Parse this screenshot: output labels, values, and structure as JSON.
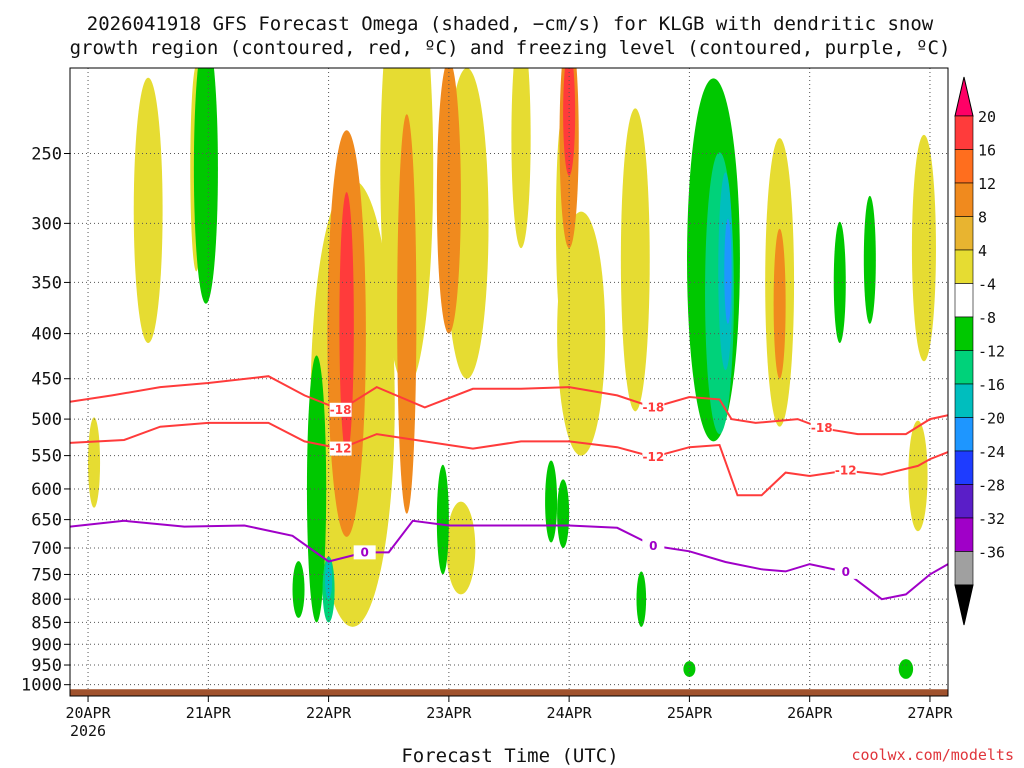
{
  "title": {
    "line1": "2026041918 GFS Forecast Omega (shaded, −cm/s) for KLGB with dendritic snow",
    "line2": "growth region (contoured, red, ºC) and freezing level (contoured, purple, ºC)"
  },
  "credit": "coolwx.com/modelts",
  "chart_data": {
    "type": "heatmap",
    "title": "2026041918 GFS Forecast Omega (shaded, −cm/s) for KLGB with dendritic snow growth region (contoured, red, ºC) and freezing level (contoured, purple, ºC)",
    "xlabel": "Forecast Time (UTC)",
    "ylabel": "",
    "x_range_days_from_20APR": [
      -0.15,
      7.15
    ],
    "y_range_hPa": [
      200,
      1030
    ],
    "x_ticks": [
      {
        "d": 0,
        "label": "20APR",
        "sub": "2026"
      },
      {
        "d": 1,
        "label": "21APR",
        "sub": ""
      },
      {
        "d": 2,
        "label": "22APR",
        "sub": ""
      },
      {
        "d": 3,
        "label": "23APR",
        "sub": ""
      },
      {
        "d": 4,
        "label": "24APR",
        "sub": ""
      },
      {
        "d": 5,
        "label": "25APR",
        "sub": ""
      },
      {
        "d": 6,
        "label": "26APR",
        "sub": ""
      },
      {
        "d": 7,
        "label": "27APR",
        "sub": ""
      }
    ],
    "y_ticks": [
      250,
      300,
      350,
      400,
      450,
      500,
      550,
      600,
      650,
      700,
      750,
      800,
      850,
      900,
      950,
      1000
    ],
    "colorbar": {
      "labels": [
        "20",
        "16",
        "12",
        "8",
        "4",
        "-4",
        "-8",
        "-12",
        "-16",
        "-20",
        "-24",
        "-28",
        "-32",
        "-36"
      ],
      "colors": [
        "#ff0066",
        "#ff3b3b",
        "#ff6e1e",
        "#f08a1e",
        "#e8b430",
        "#e6dc32",
        "#ffffff",
        "#00c800",
        "#00d27a",
        "#00bebe",
        "#1e96ff",
        "#1e3cff",
        "#5a1ec8",
        "#a000c8",
        "#a0a0a0",
        "#000000"
      ]
    },
    "omega_fields": [
      {
        "color": "#e6dc32",
        "cells": [
          [
            0.5,
            290,
            0.12,
            120
          ],
          [
            0.05,
            560,
            0.05,
            70
          ],
          [
            0.9,
            260,
            0.05,
            80
          ],
          [
            2.2,
            480,
            0.35,
            380
          ],
          [
            2.65,
            260,
            0.22,
            200
          ],
          [
            3.15,
            300,
            0.18,
            150
          ],
          [
            3.1,
            700,
            0.12,
            90
          ],
          [
            3.6,
            240,
            0.08,
            80
          ],
          [
            4.1,
            400,
            0.2,
            150
          ],
          [
            4.55,
            330,
            0.12,
            160
          ],
          [
            5.75,
            350,
            0.12,
            160
          ],
          [
            6.95,
            320,
            0.1,
            110
          ],
          [
            6.9,
            580,
            0.08,
            90
          ],
          [
            3.95,
            300,
            0.06,
            100
          ]
        ]
      },
      {
        "color": "#f08a1e",
        "cells": [
          [
            2.15,
            400,
            0.16,
            280
          ],
          [
            2.65,
            380,
            0.08,
            260
          ],
          [
            3.0,
            280,
            0.1,
            120
          ],
          [
            4.0,
            240,
            0.08,
            80
          ],
          [
            5.75,
            370,
            0.05,
            80
          ]
        ]
      },
      {
        "color": "#ff3b3b",
        "cells": [
          [
            2.15,
            390,
            0.06,
            160
          ],
          [
            4.0,
            225,
            0.05,
            40
          ]
        ]
      },
      {
        "color": "#00c800",
        "cells": [
          [
            0.98,
            260,
            0.1,
            110
          ],
          [
            1.9,
            600,
            0.08,
            250
          ],
          [
            2.95,
            650,
            0.05,
            100
          ],
          [
            3.95,
            640,
            0.05,
            60
          ],
          [
            5.2,
            330,
            0.22,
            200
          ],
          [
            6.25,
            350,
            0.05,
            60
          ],
          [
            6.5,
            330,
            0.05,
            60
          ],
          [
            5.0,
            960,
            0.05,
            20
          ],
          [
            6.8,
            960,
            0.06,
            25
          ],
          [
            1.75,
            780,
            0.05,
            60
          ],
          [
            3.85,
            620,
            0.05,
            70
          ],
          [
            4.6,
            800,
            0.04,
            60
          ]
        ]
      },
      {
        "color": "#00d27a",
        "cells": [
          [
            5.25,
            360,
            0.12,
            160
          ],
          [
            2.0,
            780,
            0.05,
            70
          ]
        ]
      },
      {
        "color": "#00bebe",
        "cells": [
          [
            5.3,
            340,
            0.06,
            100
          ],
          [
            2.0,
            760,
            0.03,
            40
          ]
        ]
      },
      {
        "color": "#1e96ff",
        "cells": [
          [
            5.32,
            340,
            0.03,
            50
          ]
        ]
      }
    ],
    "series": [
      {
        "name": "-18",
        "color": "#ff3b3b",
        "x": [
          -0.15,
          0.2,
          0.6,
          1.0,
          1.5,
          1.8,
          2.1,
          2.4,
          2.8,
          3.2,
          3.6,
          4.0,
          4.4,
          4.7,
          5.0,
          5.25,
          5.35,
          5.55,
          5.9,
          6.1,
          6.4,
          6.8,
          7.0,
          7.15
        ],
        "y": [
          478,
          470,
          460,
          455,
          447,
          470,
          488,
          460,
          485,
          462,
          462,
          460,
          470,
          485,
          472,
          475,
          500,
          505,
          500,
          512,
          520,
          520,
          500,
          495
        ]
      },
      {
        "name": "-12",
        "color": "#ff3b3b",
        "x": [
          -0.15,
          0.3,
          0.6,
          1.0,
          1.5,
          1.8,
          2.1,
          2.4,
          2.8,
          3.2,
          3.6,
          4.0,
          4.4,
          4.7,
          5.0,
          5.25,
          5.4,
          5.6,
          5.8,
          6.0,
          6.3,
          6.6,
          6.9,
          7.0,
          7.15
        ],
        "y": [
          532,
          528,
          510,
          505,
          505,
          530,
          540,
          520,
          530,
          540,
          530,
          530,
          538,
          552,
          538,
          535,
          610,
          610,
          575,
          580,
          572,
          578,
          565,
          555,
          545
        ]
      },
      {
        "name": "0",
        "color": "#a000c8",
        "x": [
          -0.15,
          0.3,
          0.8,
          1.3,
          1.7,
          2.0,
          2.3,
          2.5,
          2.7,
          3.0,
          3.5,
          4.0,
          4.4,
          4.7,
          5.0,
          5.3,
          5.6,
          5.8,
          6.0,
          6.3,
          6.6,
          6.8,
          7.0,
          7.15
        ],
        "y": [
          662,
          652,
          662,
          660,
          678,
          725,
          708,
          708,
          652,
          660,
          660,
          660,
          664,
          696,
          706,
          726,
          740,
          744,
          730,
          745,
          800,
          790,
          750,
          730
        ]
      }
    ]
  }
}
